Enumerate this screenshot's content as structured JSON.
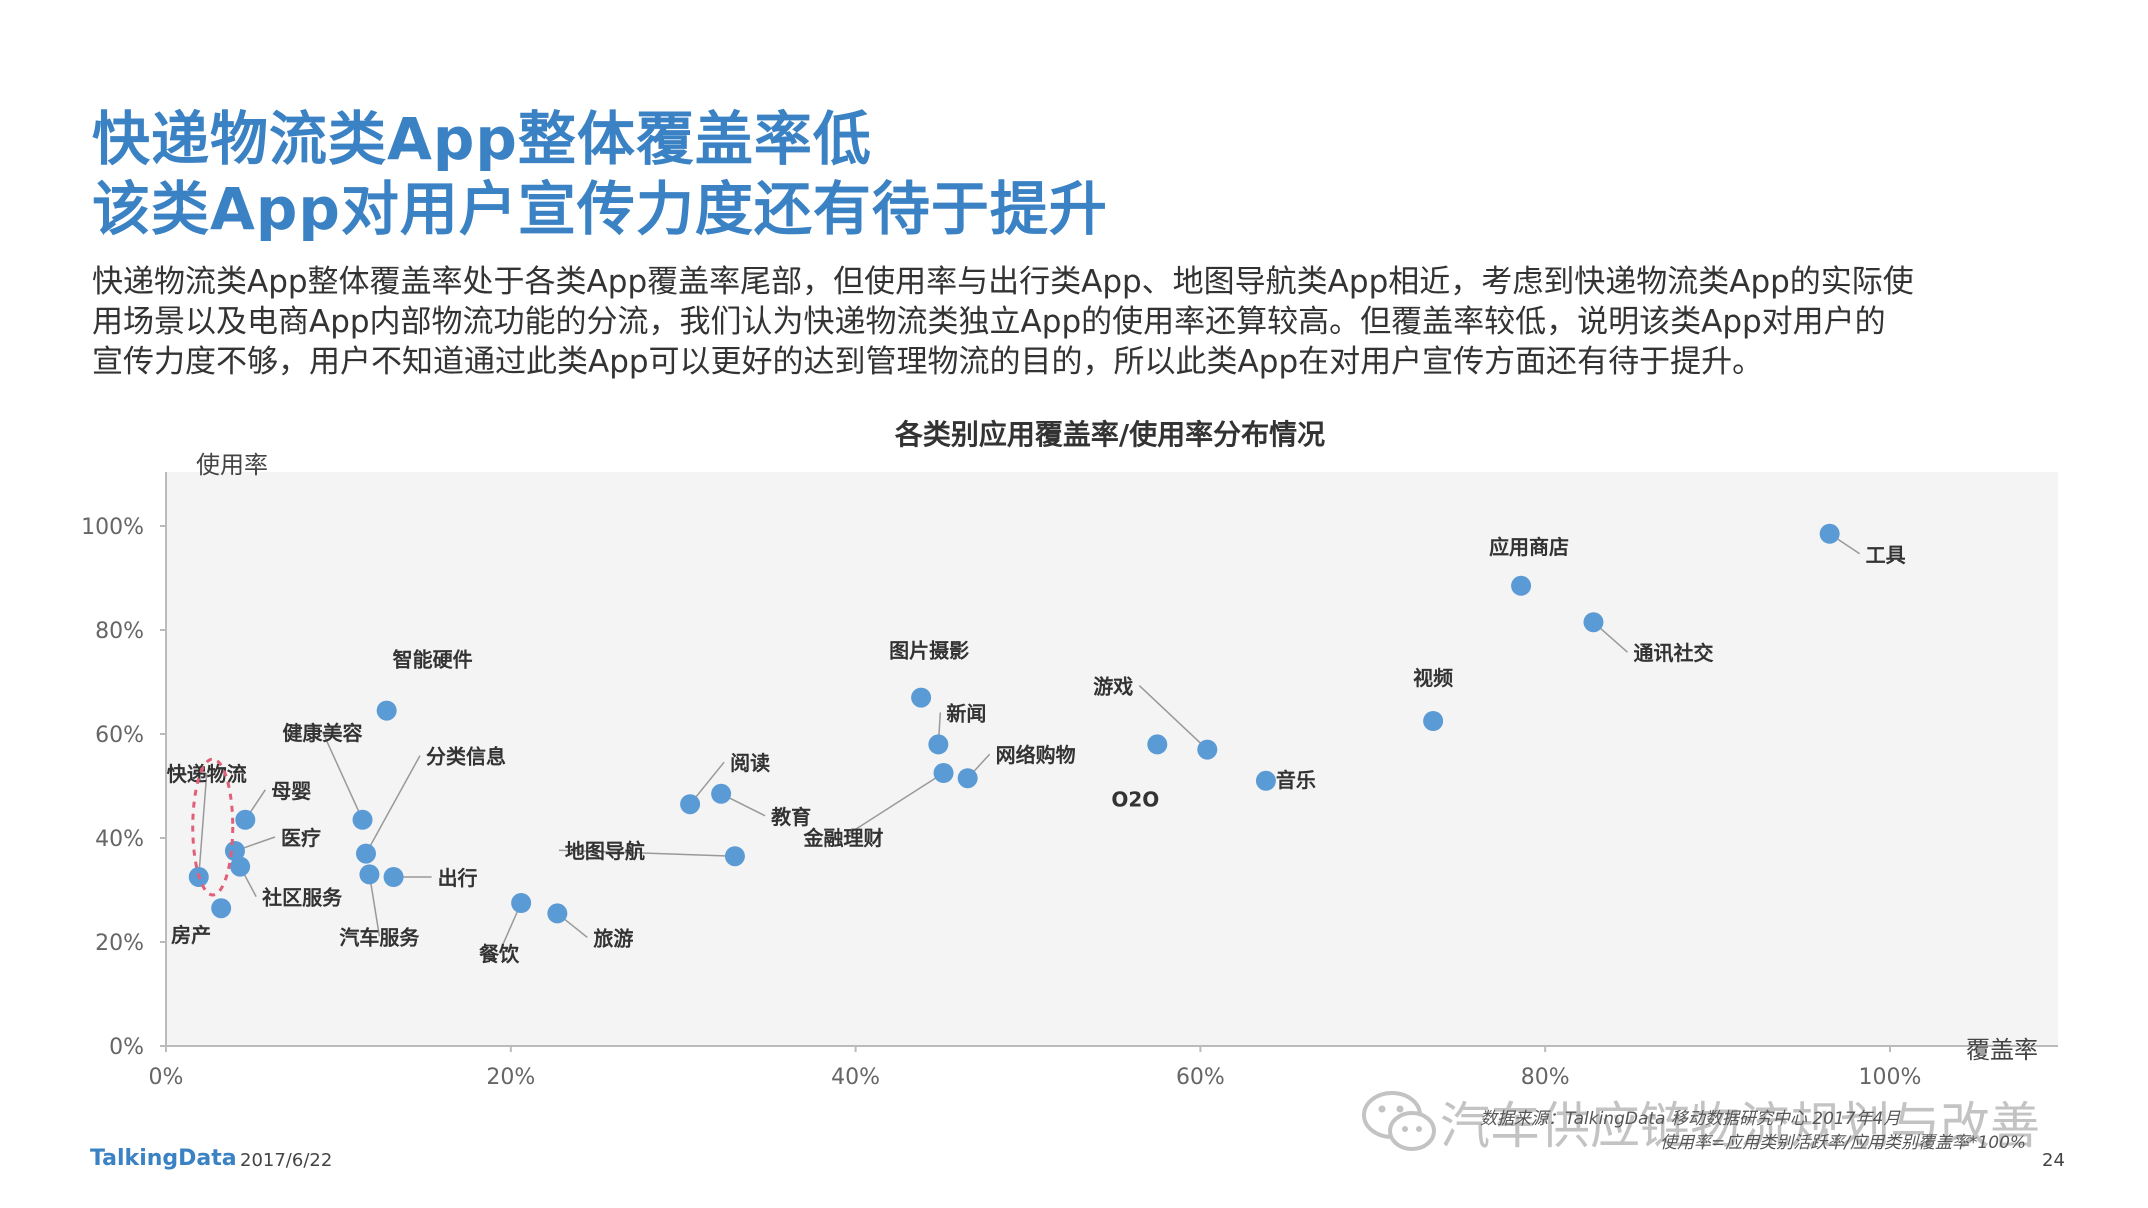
{
  "header": {
    "title_line1": "快递物流类App整体覆盖率低",
    "title_line2": "该类App对用户宣传力度还有待于提升"
  },
  "description": {
    "line1": "快递物流类App整体覆盖率处于各类App覆盖率尾部，但使用率与出行类App、地图导航类App相近，考虑到快递物流类App的实际使",
    "line2": "用场景以及电商App内部物流功能的分流，我们认为快递物流类独立App的使用率还算较高。但覆盖率较低，说明该类App对用户的",
    "line3": "宣传力度不够，用户不知道通过此类App可以更好的达到管理物流的目的，所以此类App在对用户宣传方面还有待于提升。"
  },
  "chart_data": {
    "type": "scatter",
    "title": "各类别应用覆盖率/使用率分布情况",
    "xlabel": "覆盖率",
    "ylabel": "使用率",
    "xlim": [
      0,
      110
    ],
    "ylim": [
      0,
      110
    ],
    "x_ticks": [
      "0%",
      "20%",
      "40%",
      "60%",
      "80%",
      "100%"
    ],
    "y_ticks": [
      "0%",
      "20%",
      "40%",
      "60%",
      "80%",
      "100%"
    ],
    "grid": false,
    "highlight_label": "快递物流",
    "marker_color": "#5b9bd5",
    "highlight_color": "#e0607a",
    "points": [
      {
        "label": "快递物流",
        "x": 1.9,
        "y": 32.5
      },
      {
        "label": "房产",
        "x": 3.2,
        "y": 26.5
      },
      {
        "label": "母婴",
        "x": 4.6,
        "y": 43.5
      },
      {
        "label": "医疗",
        "x": 4.0,
        "y": 37.5
      },
      {
        "label": "社区服务",
        "x": 4.3,
        "y": 34.5
      },
      {
        "label": "智能硬件",
        "x": 12.8,
        "y": 64.5
      },
      {
        "label": "健康美容",
        "x": 11.4,
        "y": 43.5
      },
      {
        "label": "分类信息",
        "x": 11.6,
        "y": 37.0
      },
      {
        "label": "汽车服务",
        "x": 11.8,
        "y": 33.0
      },
      {
        "label": "出行",
        "x": 13.2,
        "y": 32.5
      },
      {
        "label": "餐饮",
        "x": 20.6,
        "y": 27.5
      },
      {
        "label": "旅游",
        "x": 22.7,
        "y": 25.5
      },
      {
        "label": "阅读",
        "x": 30.4,
        "y": 46.5
      },
      {
        "label": "教育",
        "x": 32.2,
        "y": 48.5
      },
      {
        "label": "地图导航",
        "x": 33.0,
        "y": 36.5
      },
      {
        "label": "图片摄影",
        "x": 43.8,
        "y": 67.0
      },
      {
        "label": "新闻",
        "x": 44.8,
        "y": 58.0
      },
      {
        "label": "金融理财",
        "x": 45.1,
        "y": 52.5
      },
      {
        "label": "网络购物",
        "x": 46.5,
        "y": 51.5
      },
      {
        "label": "游戏",
        "x": 60.4,
        "y": 57.0
      },
      {
        "label": "O2O",
        "x": 57.5,
        "y": 58.0
      },
      {
        "label": "音乐",
        "x": 63.8,
        "y": 51.0
      },
      {
        "label": "视频",
        "x": 73.5,
        "y": 62.5
      },
      {
        "label": "应用商店",
        "x": 78.6,
        "y": 88.5
      },
      {
        "label": "通讯社交",
        "x": 82.8,
        "y": 81.5
      },
      {
        "label": "工具",
        "x": 96.5,
        "y": 98.5
      }
    ]
  },
  "footer": {
    "logo": "TalkingData",
    "date": "2017/6/22",
    "page": "24",
    "source": "数据来源：TalkingData 移动数据研究中心  2017年4月",
    "footnote": "使用率=应用类别活跃率/应用类别覆盖率*100%"
  },
  "watermark": {
    "text": "汽车供应链物流规划与改善",
    "icon": "wechat-icon"
  }
}
